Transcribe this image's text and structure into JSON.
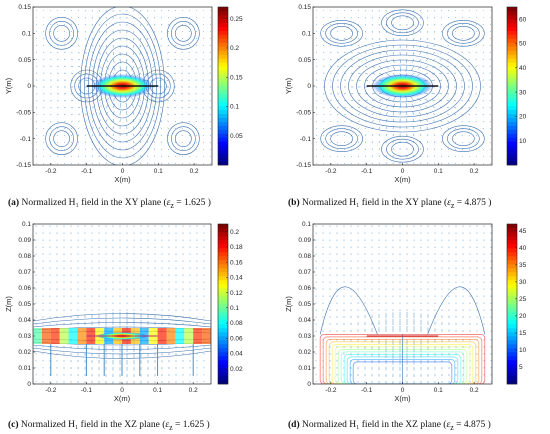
{
  "panels": [
    {
      "id": "a",
      "caption": {
        "letter": "(a)",
        "text": "Normalized H₁ field in the XY plane (",
        "eps": "ε",
        "sub": "z",
        "value": "= 1.625 )"
      },
      "chart_data": {
        "type": "heatmap",
        "xlabel": "X(m)",
        "ylabel": "Y(m)",
        "xlim": [
          -0.25,
          0.25
        ],
        "ylim": [
          -0.15,
          0.15
        ],
        "xticks": [
          "-0.2",
          "-0.1",
          "0",
          "0.1",
          "0.2"
        ],
        "yticks": [
          "-0.15",
          "-0.1",
          "-0.05",
          "0",
          "0.05",
          "0.1",
          "0.15"
        ],
        "colorbar": {
          "min": 0,
          "max": 0.27,
          "ticks": [
            "0.05",
            "0.1",
            "0.15",
            "0.2",
            "0.25"
          ]
        }
      }
    },
    {
      "id": "b",
      "caption": {
        "letter": "(b)",
        "text": "Normalized H₁ field in the XY plane (",
        "eps": "ε",
        "sub": "z",
        "value": "= 4.875 )"
      },
      "chart_data": {
        "type": "heatmap",
        "xlabel": "X(m)",
        "ylabel": "Y(m)",
        "xlim": [
          -0.25,
          0.25
        ],
        "ylim": [
          -0.15,
          0.15
        ],
        "xticks": [
          "-0.2",
          "-0.1",
          "0",
          "0.1",
          "0.2"
        ],
        "yticks": [
          "-0.15",
          "-0.1",
          "-0.05",
          "0",
          "0.05",
          "0.1",
          "0.15"
        ],
        "colorbar": {
          "min": 0,
          "max": 65,
          "ticks": [
            "10",
            "20",
            "30",
            "40",
            "50",
            "60"
          ]
        }
      }
    },
    {
      "id": "c",
      "caption": {
        "letter": "(c)",
        "text": "Normalized H₁ field in the XZ plane (",
        "eps": "ε",
        "sub": "z",
        "value": "= 1.625 )"
      },
      "chart_data": {
        "type": "heatmap",
        "xlabel": "X(m)",
        "ylabel": "Z(m)",
        "xlim": [
          -0.25,
          0.25
        ],
        "ylim": [
          0,
          0.1
        ],
        "xticks": [
          "-0.2",
          "-0.1",
          "0",
          "0.1",
          "0.2"
        ],
        "yticks": [
          "0",
          "0.01",
          "0.02",
          "0.03",
          "0.04",
          "0.05",
          "0.06",
          "0.07",
          "0.08",
          "0.09",
          "0.1"
        ],
        "colorbar": {
          "min": 0,
          "max": 0.21,
          "ticks": [
            "0.02",
            "0.04",
            "0.06",
            "0.08",
            "0.1",
            "0.12",
            "0.14",
            "0.16",
            "0.18",
            "0.2"
          ]
        }
      }
    },
    {
      "id": "d",
      "caption": {
        "letter": "(d)",
        "text": "Normalized H₁ field in the XZ plane (",
        "eps": "ε",
        "sub": "z",
        "value": "= 4.875 )"
      },
      "chart_data": {
        "type": "heatmap",
        "xlabel": "X(m)",
        "ylabel": "Z(m)",
        "xlim": [
          -0.25,
          0.25
        ],
        "ylim": [
          0,
          0.1
        ],
        "xticks": [
          "-0.2",
          "-0.1",
          "0",
          "0.1",
          "0.2"
        ],
        "yticks": [
          "0",
          "0.01",
          "0.02",
          "0.03",
          "0.04",
          "0.05",
          "0.06",
          "0.07",
          "0.08",
          "0.09",
          "0.1"
        ],
        "colorbar": {
          "min": 0,
          "max": 47,
          "ticks": [
            "5",
            "10",
            "15",
            "20",
            "25",
            "30",
            "35",
            "40",
            "45"
          ]
        }
      }
    }
  ]
}
